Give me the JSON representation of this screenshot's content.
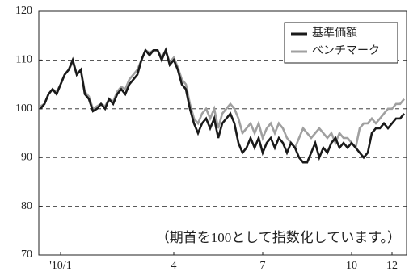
{
  "chart_data": {
    "type": "line",
    "annotation": "（期首を100として指数化しています。）",
    "x": [
      0,
      1,
      2,
      3,
      4,
      5,
      6,
      7,
      8,
      9,
      10,
      11,
      12,
      13,
      14,
      15,
      16,
      17,
      18,
      19,
      20,
      21,
      22,
      23,
      24,
      25,
      26,
      27,
      28,
      29,
      30,
      31,
      32,
      33,
      34,
      35,
      36,
      37,
      38,
      39,
      40,
      41,
      42,
      43,
      44,
      45,
      46,
      47,
      48,
      49,
      50,
      51,
      52,
      53,
      54,
      55,
      56,
      57,
      58,
      59,
      60,
      61,
      62,
      63,
      64,
      65,
      66,
      67,
      68,
      69,
      70,
      71,
      72,
      73,
      74,
      75,
      76,
      77,
      78,
      79,
      80,
      81,
      82,
      83,
      84,
      85,
      86,
      87,
      88,
      89,
      90
    ],
    "series": [
      {
        "name": "基準価額",
        "color": "#1a1a1a",
        "values": [
          100,
          101,
          103,
          104,
          103,
          105,
          107,
          108,
          110,
          107,
          108,
          103,
          102,
          99.5,
          100,
          101,
          100,
          102,
          101,
          103,
          104,
          103,
          105,
          106,
          107,
          110,
          112,
          111,
          112,
          112,
          110,
          112,
          109,
          110,
          108,
          105,
          104,
          100,
          97,
          95,
          97,
          98,
          96,
          98,
          94,
          97,
          98,
          99,
          97,
          93,
          91,
          92,
          94,
          92,
          94,
          91,
          93,
          94,
          92,
          94,
          93,
          91,
          93,
          92,
          90,
          89,
          89,
          91,
          93,
          90,
          92,
          91,
          93,
          94,
          92,
          93,
          92,
          93,
          92,
          91,
          90,
          91,
          95,
          96,
          96,
          97,
          96,
          97,
          98,
          98,
          99
        ]
      },
      {
        "name": "ベンチマーク",
        "color": "#a0a0a0",
        "values": [
          100.5,
          101,
          103,
          104,
          103.5,
          105,
          107,
          108,
          109.5,
          107,
          108,
          103.5,
          102.5,
          100,
          100.5,
          101,
          100.5,
          102,
          101.5,
          103.5,
          104.5,
          104,
          106,
          107,
          108,
          110,
          112,
          111.5,
          112,
          112,
          110.5,
          112,
          109.5,
          110.5,
          108.5,
          106,
          105,
          101,
          98,
          97,
          99,
          100,
          98,
          100,
          96,
          99,
          100,
          101,
          100,
          98,
          95,
          96,
          97,
          95,
          97,
          94,
          96,
          97,
          95,
          97,
          96,
          94,
          93,
          92,
          94,
          96,
          95,
          94,
          95,
          96,
          95,
          94,
          95,
          93,
          95,
          94,
          94,
          93,
          92,
          96,
          97,
          97,
          98,
          97,
          98,
          99,
          100,
          100,
          101,
          101,
          102
        ]
      }
    ],
    "xlim": [
      -0.4,
      90.6
    ],
    "xticks": [
      {
        "value": 5,
        "label": "'10/1"
      },
      {
        "value": 33,
        "label": "4"
      },
      {
        "value": 55,
        "label": "7"
      },
      {
        "value": 77,
        "label": "10"
      },
      {
        "value": 87,
        "label": "12"
      }
    ],
    "ylim": [
      70,
      120
    ],
    "yticks": [
      70,
      80,
      90,
      100,
      110,
      120
    ],
    "grid": true,
    "legend": "upper right"
  }
}
